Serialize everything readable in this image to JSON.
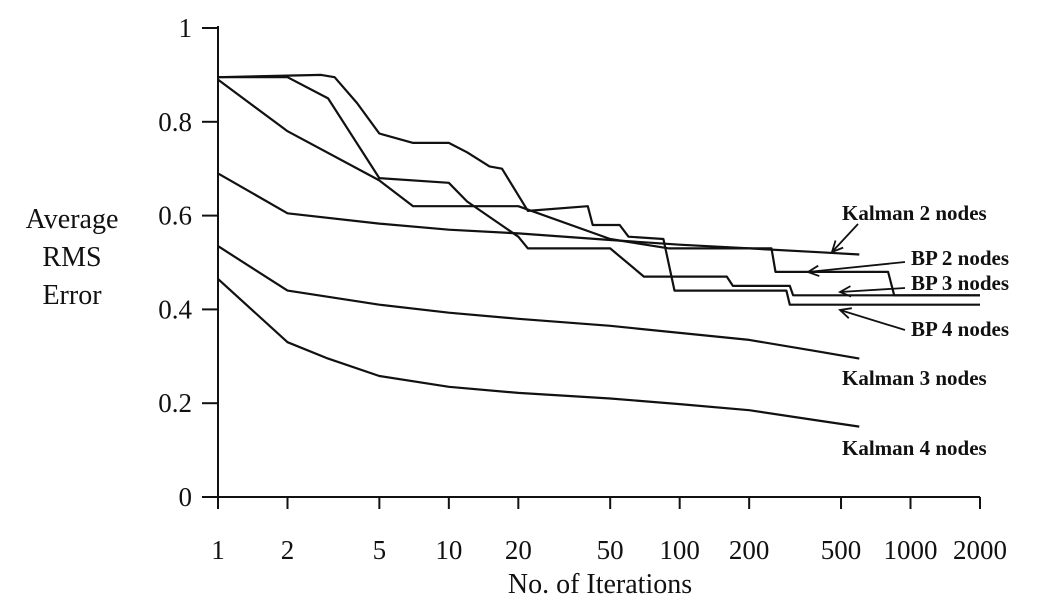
{
  "chart_data": {
    "type": "line",
    "xscale": "log",
    "xlabel": "No. of Iterations",
    "ylabel": [
      "Average",
      "RMS",
      "Error"
    ],
    "xlim": [
      1,
      2000
    ],
    "ylim": [
      0,
      1
    ],
    "x_ticks": [
      1,
      2,
      5,
      10,
      20,
      50,
      100,
      200,
      500,
      1000,
      2000
    ],
    "x_tick_labels": [
      "1",
      "2",
      "5",
      "10",
      "20",
      "50",
      "100",
      "200",
      "500",
      "1000",
      "2000"
    ],
    "y_ticks": [
      0,
      0.2,
      0.4,
      0.6,
      0.8,
      1
    ],
    "y_tick_labels": [
      "0",
      "0.2",
      "0.4",
      "0.6",
      "0.8",
      "1"
    ],
    "grid": false,
    "series": [
      {
        "name": "Kalman 2 nodes",
        "x": [
          1,
          2,
          5,
          10,
          20,
          50,
          100,
          200,
          400,
          600
        ],
        "y": [
          0.69,
          0.605,
          0.583,
          0.57,
          0.562,
          0.548,
          0.538,
          0.53,
          0.522,
          0.517
        ]
      },
      {
        "name": "Kalman 3 nodes",
        "x": [
          1,
          2,
          5,
          10,
          20,
          50,
          100,
          200,
          400,
          600
        ],
        "y": [
          0.535,
          0.44,
          0.41,
          0.393,
          0.38,
          0.365,
          0.35,
          0.335,
          0.31,
          0.295
        ]
      },
      {
        "name": "Kalman 4 nodes",
        "x": [
          1,
          2,
          3,
          5,
          10,
          20,
          50,
          100,
          200,
          400,
          600
        ],
        "y": [
          0.465,
          0.33,
          0.295,
          0.258,
          0.235,
          0.222,
          0.21,
          0.198,
          0.185,
          0.163,
          0.15
        ]
      },
      {
        "name": "BP 2 nodes",
        "x": [
          1,
          2,
          5,
          7,
          20,
          50,
          90,
          250,
          260,
          800,
          850,
          2000
        ],
        "y": [
          0.89,
          0.78,
          0.675,
          0.62,
          0.62,
          0.55,
          0.53,
          0.53,
          0.48,
          0.48,
          0.43,
          0.43
        ]
      },
      {
        "name": "BP 3 nodes",
        "x": [
          1,
          2,
          3,
          5,
          10,
          12,
          20,
          22,
          50,
          70,
          110,
          160,
          170,
          300,
          310,
          2000
        ],
        "y": [
          0.895,
          0.895,
          0.85,
          0.68,
          0.67,
          0.63,
          0.555,
          0.53,
          0.53,
          0.47,
          0.47,
          0.47,
          0.45,
          0.45,
          0.43,
          0.43
        ]
      },
      {
        "name": "BP 4 nodes",
        "x": [
          1,
          2.8,
          3.2,
          4,
          5,
          7,
          10,
          12,
          15,
          17,
          22,
          40,
          42,
          55,
          60,
          85,
          95,
          290,
          300,
          2000
        ],
        "y": [
          0.895,
          0.9,
          0.895,
          0.84,
          0.775,
          0.755,
          0.755,
          0.735,
          0.705,
          0.7,
          0.61,
          0.62,
          0.58,
          0.58,
          0.555,
          0.55,
          0.44,
          0.44,
          0.41,
          0.41
        ]
      }
    ],
    "annotations": [
      {
        "text": "Kalman 2 nodes"
      },
      {
        "text": "BP 2 nodes"
      },
      {
        "text": "BP 3 nodes"
      },
      {
        "text": "BP 4 nodes"
      },
      {
        "text": "Kalman 3 nodes"
      },
      {
        "text": "Kalman 4 nodes"
      }
    ]
  }
}
